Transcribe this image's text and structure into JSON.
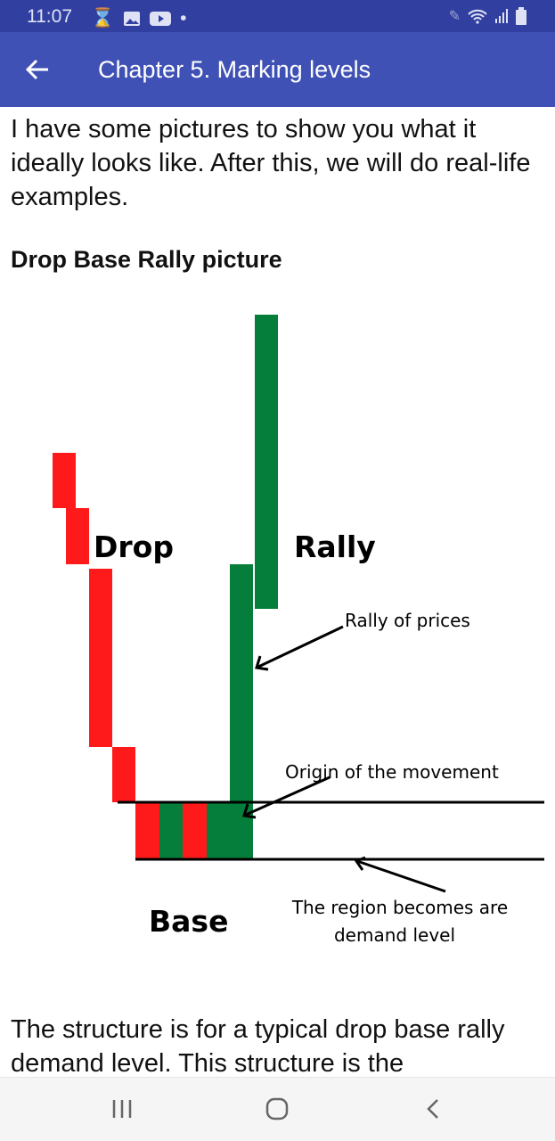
{
  "status_bar": {
    "time": "11:07",
    "left_icons": [
      "hourglass-icon",
      "image-icon",
      "youtube-icon",
      "dot-icon"
    ],
    "right_icons": [
      "pen-icon",
      "wifi-icon",
      "signal-icon",
      "battery-icon"
    ]
  },
  "app_bar": {
    "title": "Chapter 5. Marking levels",
    "back_icon": "arrow-left-icon"
  },
  "content": {
    "intro": "I have some pictures to show you what it ideally looks like. After this, we will do real-life examples.",
    "heading": "Drop Base Rally picture",
    "figure": {
      "labels": {
        "drop": "Drop",
        "rally": "Rally",
        "base": "Base"
      },
      "annotations": {
        "rally_of_prices": "Rally of prices",
        "origin": "Origin of the movement",
        "region_line1": "The region becomes are",
        "region_line2": "demand level"
      },
      "colors": {
        "bearish": "#fe1a1a",
        "bullish": "#047e3a"
      }
    },
    "outro": "The structure is for a typical drop base rally demand level. This structure is the"
  },
  "nav_bar": {
    "buttons": [
      "recents-icon",
      "home-icon",
      "back-icon"
    ]
  }
}
